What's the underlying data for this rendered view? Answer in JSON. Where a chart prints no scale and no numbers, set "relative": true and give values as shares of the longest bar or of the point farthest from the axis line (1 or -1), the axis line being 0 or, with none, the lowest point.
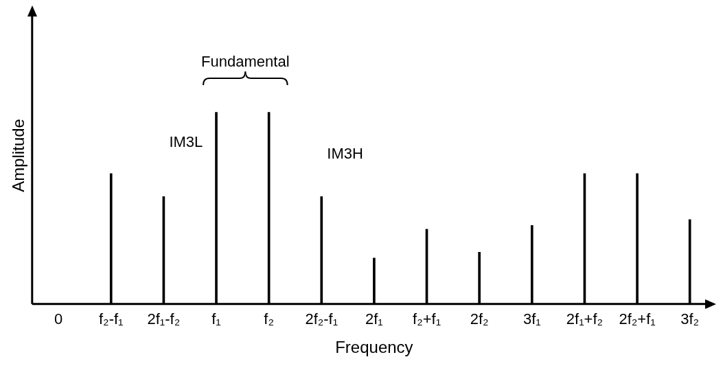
{
  "chart_data": {
    "type": "bar",
    "relative": true,
    "xlabel": "Frequency",
    "ylabel": "Amplitude",
    "categories": [
      "0",
      "f₂-f₁",
      "2f₁-f₂",
      "f₁",
      "f₂",
      "2f₂-f₁",
      "2f₁",
      "f₂+f₁",
      "2f₂",
      "3f₁",
      "2f₁+f₂",
      "2f₂+f₁",
      "3f₂"
    ],
    "values": [
      null,
      0.68,
      0.56,
      1,
      1,
      0.56,
      0.24,
      0.39,
      0.27,
      0.41,
      0.68,
      0.68,
      0.44
    ],
    "color": "#000000",
    "grid": false,
    "legend": false,
    "annotations": [
      "IM3L",
      "Fundamental",
      "IM3H"
    ]
  }
}
